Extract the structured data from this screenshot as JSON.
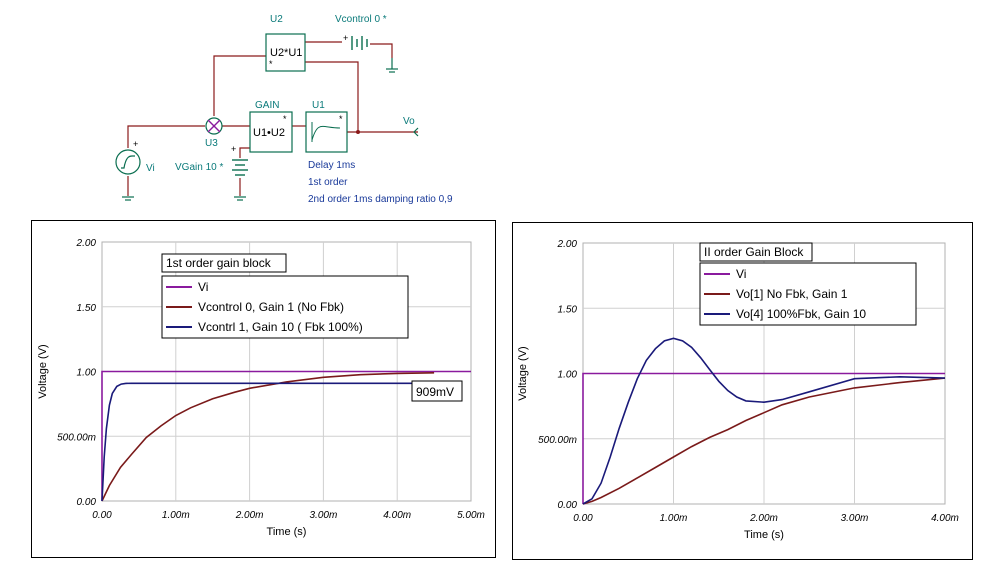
{
  "schematic": {
    "u2": {
      "ref": "U2",
      "expr": "U2*U1",
      "star": "*"
    },
    "vcontrol": {
      "label": "Vcontrol 0 *"
    },
    "gain_block": {
      "title": "GAIN",
      "expr": "U1•U2",
      "star": "*"
    },
    "u1": {
      "ref": "U1",
      "star": "*"
    },
    "u3": {
      "ref": "U3"
    },
    "vi": {
      "label": "Vi"
    },
    "vgain": {
      "label": "VGain 10 *"
    },
    "vo": {
      "label": "Vo"
    },
    "notes": [
      "Delay 1ms",
      "1st order",
      "2nd order 1ms damping ratio 0,9"
    ],
    "colors": {
      "wire": "#8b1a1a",
      "block": "#0a6e50",
      "text": "#0a7a7a",
      "note": "#1a3a9a"
    }
  },
  "chart_data": [
    {
      "type": "line",
      "title": "1st order gain block",
      "xlabel": "Time (s)",
      "ylabel": "Voltage (V)",
      "xlim": [
        0,
        5.0
      ],
      "ylim": [
        0,
        2.0
      ],
      "x_ticks": [
        "0.00",
        "1.00m",
        "2.00m",
        "3.00m",
        "4.00m",
        "5.00m"
      ],
      "y_ticks": [
        "0.00",
        "500.00m",
        "1.00",
        "1.50",
        "2.00"
      ],
      "annotation": "909mV",
      "series": [
        {
          "name": "Vi",
          "color": "#8a1a9e",
          "x": [
            0,
            0.0,
            5.0
          ],
          "y": [
            0,
            1.0,
            1.0
          ]
        },
        {
          "name": "Vcontrol 0, Gain 1 (No Fbk)",
          "color": "#7a1a1a",
          "x": [
            0,
            0.1,
            0.25,
            0.4,
            0.6,
            0.8,
            1.0,
            1.2,
            1.5,
            1.8,
            2.0,
            2.5,
            3.0,
            3.5,
            4.0,
            4.5
          ],
          "y": [
            0,
            0.12,
            0.26,
            0.36,
            0.49,
            0.58,
            0.66,
            0.72,
            0.79,
            0.84,
            0.87,
            0.92,
            0.955,
            0.975,
            0.985,
            0.99
          ]
        },
        {
          "name": "Vcontrl 1, Gain 10 ( Fbk 100%)",
          "color": "#1a1a7a",
          "x": [
            0,
            0.03,
            0.06,
            0.1,
            0.14,
            0.2,
            0.26,
            0.32,
            0.4,
            4.3
          ],
          "y": [
            0,
            0.34,
            0.56,
            0.74,
            0.83,
            0.885,
            0.903,
            0.908,
            0.909,
            0.909
          ]
        }
      ]
    },
    {
      "type": "line",
      "title": "II order Gain Block",
      "xlabel": "Time (s)",
      "ylabel": "Voltage (V)",
      "xlim": [
        0,
        4.0
      ],
      "ylim": [
        0,
        2.0
      ],
      "x_ticks": [
        "0.00",
        "1.00m",
        "2.00m",
        "3.00m",
        "4.00m"
      ],
      "y_ticks": [
        "0.00",
        "500.00m",
        "1.00",
        "1.50",
        "2.00"
      ],
      "series": [
        {
          "name": "Vi",
          "color": "#8a1a9e",
          "x": [
            0,
            0.0,
            4.0
          ],
          "y": [
            0,
            1.0,
            1.0
          ]
        },
        {
          "name": "Vo[1]  No Fbk, Gain 1",
          "color": "#7a1a1a",
          "x": [
            0,
            0.1,
            0.2,
            0.4,
            0.6,
            0.8,
            1.0,
            1.2,
            1.4,
            1.6,
            1.8,
            2.0,
            2.2,
            2.5,
            3.0,
            3.5,
            4.0
          ],
          "y": [
            0,
            0.02,
            0.05,
            0.12,
            0.2,
            0.28,
            0.36,
            0.44,
            0.51,
            0.57,
            0.64,
            0.7,
            0.76,
            0.82,
            0.89,
            0.93,
            0.965
          ]
        },
        {
          "name": "Vo[4]  100%Fbk, Gain 10",
          "color": "#1a1a7a",
          "x": [
            0,
            0.1,
            0.2,
            0.3,
            0.4,
            0.5,
            0.6,
            0.7,
            0.8,
            0.9,
            1.0,
            1.1,
            1.2,
            1.3,
            1.4,
            1.5,
            1.6,
            1.7,
            1.8,
            2.0,
            2.2,
            2.5,
            3.0,
            3.5,
            4.0
          ],
          "y": [
            0,
            0.04,
            0.16,
            0.36,
            0.58,
            0.78,
            0.96,
            1.1,
            1.19,
            1.25,
            1.27,
            1.25,
            1.2,
            1.12,
            1.03,
            0.94,
            0.87,
            0.82,
            0.79,
            0.78,
            0.8,
            0.86,
            0.96,
            0.975,
            0.965
          ]
        }
      ]
    }
  ]
}
